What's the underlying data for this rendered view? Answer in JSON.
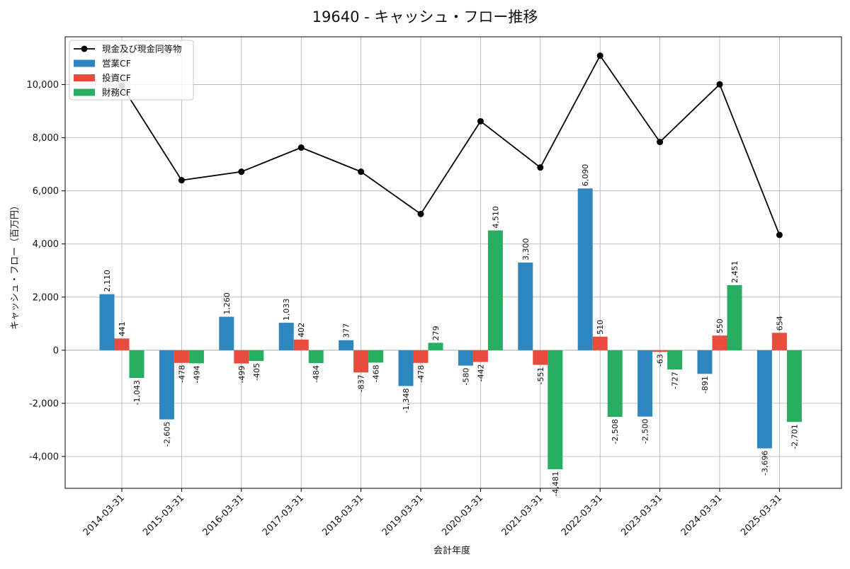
{
  "chart_data": {
    "type": "bar",
    "title": "19640 - キャッシュ・フロー推移",
    "xlabel": "会計年度",
    "ylabel": "キャッシュ・フロー（百万円）",
    "categories": [
      "2014-03-31",
      "2015-03-31",
      "2016-03-31",
      "2017-03-31",
      "2018-03-31",
      "2019-03-31",
      "2020-03-31",
      "2021-03-31",
      "2022-03-31",
      "2023-03-31",
      "2024-03-31",
      "2025-03-31"
    ],
    "ylim": [
      -5200,
      11800
    ],
    "yticks": [
      -4000,
      -2000,
      0,
      2000,
      4000,
      6000,
      8000,
      10000
    ],
    "ytick_labels": [
      "-4,000",
      "-2,000",
      "0",
      "2,000",
      "4,000",
      "6,000",
      "8,000",
      "10,000"
    ],
    "grid": true,
    "legend_position": "top-left",
    "series": [
      {
        "name": "営業CF",
        "kind": "bar",
        "color": "#2e86c1",
        "values": [
          2110,
          -2605,
          1260,
          1033,
          377,
          -1348,
          -580,
          3300,
          6090,
          -2500,
          -891,
          -3696
        ],
        "labels": [
          "2,110",
          "-2,605",
          "1,260",
          "1,033",
          "377",
          "-1,348",
          "-580",
          "3,300",
          "6,090",
          "-2,500",
          "-891",
          "-3,696"
        ]
      },
      {
        "name": "投資CF",
        "kind": "bar",
        "color": "#e74c3c",
        "values": [
          441,
          -478,
          -499,
          402,
          -837,
          -478,
          -442,
          -551,
          510,
          -63,
          550,
          654
        ],
        "labels": [
          "441",
          "-478",
          "-499",
          "402",
          "-837",
          "-478",
          "-442",
          "-551",
          "510",
          "-63",
          "550",
          "654"
        ]
      },
      {
        "name": "財務CF",
        "kind": "bar",
        "color": "#27ae60",
        "values": [
          -1043,
          -494,
          -405,
          -484,
          -468,
          279,
          4510,
          -4481,
          -2508,
          -727,
          2451,
          -2701
        ],
        "labels": [
          "-1,043",
          "-494",
          "-405",
          "-484",
          "-468",
          "279",
          "4,510",
          "-4,481",
          "-2,508",
          "-727",
          "2,451",
          "-2,701"
        ]
      },
      {
        "name": "現金及び現金同等物",
        "kind": "line",
        "color": "#000000",
        "values": [
          9950,
          6400,
          6720,
          7630,
          6720,
          5130,
          8620,
          6880,
          11090,
          7840,
          10010,
          4340
        ]
      }
    ]
  }
}
